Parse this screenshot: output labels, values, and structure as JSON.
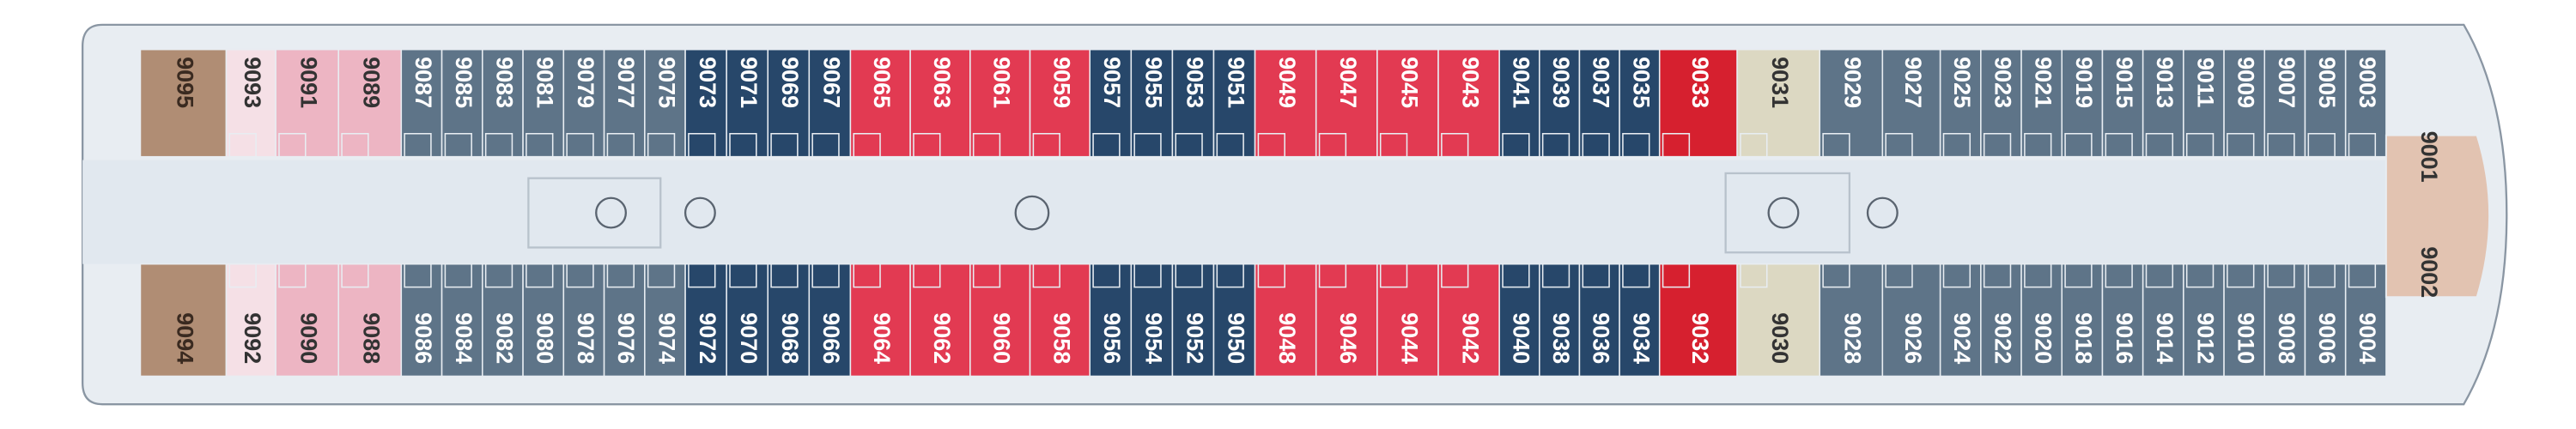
{
  "deck": {
    "top": [
      "9095",
      "9093",
      "9091",
      "9089",
      "9087",
      "9085",
      "9083",
      "9081",
      "9079",
      "9077",
      "9075",
      "9073",
      "9071",
      "9069",
      "9067",
      "9065",
      "9063",
      "9061",
      "9059",
      "9057",
      "9055",
      "9053",
      "9051",
      "9049",
      "9047",
      "9045",
      "9043",
      "9041",
      "9039",
      "9037",
      "9035",
      "9033",
      "9031",
      "9029",
      "9027",
      "9025",
      "9023",
      "9021",
      "9019",
      "9015",
      "9013",
      "9011",
      "9009",
      "9007",
      "9005",
      "9003"
    ],
    "bottom": [
      "9094",
      "9092",
      "9090",
      "9088",
      "9086",
      "9084",
      "9082",
      "9080",
      "9078",
      "9076",
      "9074",
      "9072",
      "9070",
      "9068",
      "9066",
      "9064",
      "9062",
      "9060",
      "9058",
      "9056",
      "9054",
      "9052",
      "9050",
      "9048",
      "9046",
      "9044",
      "9042",
      "9040",
      "9038",
      "9036",
      "9034",
      "9032",
      "9030",
      "9028",
      "9026",
      "9024",
      "9022",
      "9020",
      "9018",
      "9016",
      "9014",
      "9012",
      "9010",
      "9008",
      "9006",
      "9004"
    ],
    "bow": [
      "9001",
      "9002"
    ]
  }
}
